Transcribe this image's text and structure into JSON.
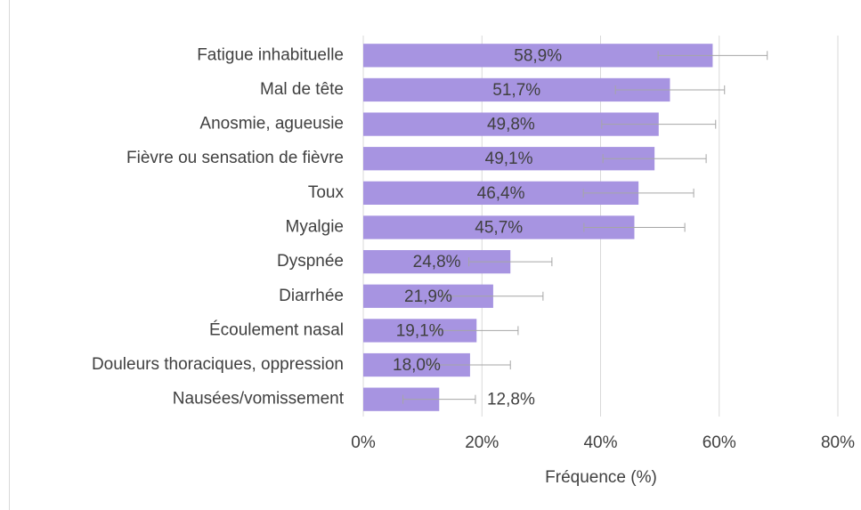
{
  "chart_data": {
    "type": "barh",
    "x_label": "Fréquence (%)",
    "categories": [
      "Fatigue inhabituelle",
      "Mal de tête",
      "Anosmie, agueusie",
      "Fièvre ou sensation de fièvre",
      "Toux",
      "Myalgie",
      "Dyspnée",
      "Diarrhée",
      "Écoulement nasal",
      "Douleurs thoraciques, oppression",
      "Nausées/vomissement"
    ],
    "values": [
      58.9,
      51.7,
      49.8,
      49.1,
      46.4,
      45.7,
      24.8,
      21.9,
      19.1,
      18.0,
      12.8
    ],
    "value_labels": [
      "58,9%",
      "51,7%",
      "49,8%",
      "49,1%",
      "46,4%",
      "45,7%",
      "24,8%",
      "21,9%",
      "19,1%",
      "18,0%",
      "12,8%"
    ],
    "errors": [
      9.2,
      9.2,
      9.6,
      8.7,
      9.3,
      8.5,
      7.0,
      8.4,
      7.0,
      6.8,
      6.1
    ],
    "color": "#a794e1",
    "xlim": [
      0,
      80
    ],
    "xticks": [
      {
        "value": 0,
        "label": "0%"
      },
      {
        "value": 20,
        "label": "20%"
      },
      {
        "value": 40,
        "label": "40%"
      },
      {
        "value": 60,
        "label": "60%"
      },
      {
        "value": 80,
        "label": "80%"
      }
    ],
    "grid": true
  }
}
